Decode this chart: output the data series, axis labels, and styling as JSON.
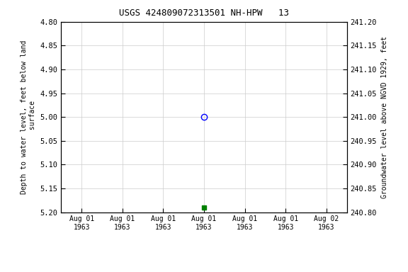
{
  "title": "USGS 424809072313501 NH-HPW   13",
  "ylabel_left": "Depth to water level, feet below land\n surface",
  "ylabel_right": "Groundwater level above NGVD 1929, feet",
  "ylim_left_top": 4.8,
  "ylim_left_bottom": 5.2,
  "ylim_right_top": 241.2,
  "ylim_right_bottom": 240.8,
  "y_ticks_left": [
    4.8,
    4.85,
    4.9,
    4.95,
    5.0,
    5.05,
    5.1,
    5.15,
    5.2
  ],
  "y_ticks_right": [
    241.2,
    241.15,
    241.1,
    241.05,
    241.0,
    240.95,
    240.9,
    240.85,
    240.8
  ],
  "data_point_x": 3,
  "data_point_value": 5.0,
  "data_point_color": "blue",
  "data_point_marker": "o",
  "data_point2_x": 3,
  "data_point2_value": 5.19,
  "data_point2_color": "green",
  "data_point2_marker": "s",
  "data_point2_size": 4,
  "grid_color": "#cccccc",
  "bg_color": "#ffffff",
  "font_family": "monospace",
  "legend_color": "green",
  "x_tick_labels": [
    "Aug 01\n1963",
    "Aug 01\n1963",
    "Aug 01\n1963",
    "Aug 01\n1963",
    "Aug 01\n1963",
    "Aug 01\n1963",
    "Aug 02\n1963"
  ],
  "x_tick_positions": [
    0,
    1,
    2,
    3,
    4,
    5,
    6
  ],
  "xlim": [
    -0.5,
    6.5
  ]
}
